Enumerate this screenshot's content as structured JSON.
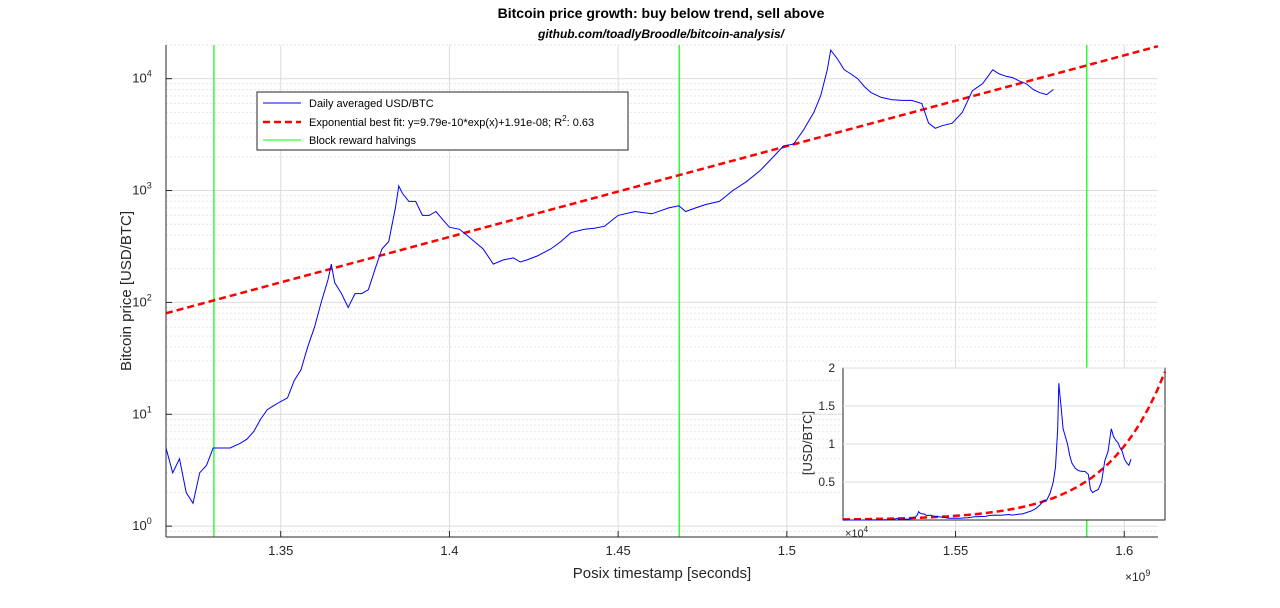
{
  "chart_data": {
    "type": "line",
    "title": "Bitcoin price growth: buy below trend, sell above",
    "subtitle": "github.com/toadlyBroodle/bitcoin-analysis/",
    "xlabel": "Posix timestamp [seconds]",
    "ylabel": "Bitcoin price [USD/BTC]",
    "x_exponent_label": "×10",
    "x_exponent_power": "9",
    "y_scale": "log",
    "xlim": [
      1.316,
      1.61
    ],
    "ylim": [
      0.8,
      20000
    ],
    "grid": true,
    "legend_position": "top-left",
    "x_ticks": [
      1.35,
      1.4,
      1.45,
      1.5,
      1.55,
      1.6
    ],
    "x_tick_labels": [
      "1.35",
      "1.4",
      "1.45",
      "1.5",
      "1.55",
      "1.6"
    ],
    "y_ticks": [
      1,
      10,
      100,
      1000,
      10000
    ],
    "y_tick_bases": [
      "10",
      "10",
      "10",
      "10",
      "10"
    ],
    "y_tick_powers": [
      "0",
      "1",
      "2",
      "3",
      "4"
    ],
    "legend": [
      {
        "label": "Daily averaged USD/BTC",
        "color": "#0000ff",
        "style": "solid"
      },
      {
        "label": "Exponential best fit: y=9.79e-10*exp(x)+1.91e-08; R",
        "sup": "2",
        "suffix": ": 0.63",
        "color": "#ff0000",
        "style": "dashed"
      },
      {
        "label": "Block reward halvings",
        "color": "#00ff00",
        "style": "solid"
      }
    ],
    "halvings": [
      1.3302,
      1.4681,
      1.5889
    ],
    "fit": {
      "start_value": 80,
      "end_value": 19500
    },
    "series": [
      {
        "name": "Daily averaged USD/BTC",
        "x": [
          1.316,
          1.318,
          1.32,
          1.322,
          1.324,
          1.326,
          1.328,
          1.33,
          1.332,
          1.335,
          1.338,
          1.34,
          1.342,
          1.344,
          1.346,
          1.348,
          1.35,
          1.352,
          1.354,
          1.356,
          1.358,
          1.36,
          1.362,
          1.364,
          1.365,
          1.366,
          1.368,
          1.37,
          1.372,
          1.374,
          1.376,
          1.378,
          1.38,
          1.382,
          1.384,
          1.385,
          1.386,
          1.388,
          1.39,
          1.392,
          1.394,
          1.396,
          1.398,
          1.4,
          1.403,
          1.406,
          1.41,
          1.413,
          1.416,
          1.419,
          1.421,
          1.423,
          1.426,
          1.43,
          1.433,
          1.436,
          1.44,
          1.443,
          1.446,
          1.45,
          1.455,
          1.46,
          1.465,
          1.468,
          1.47,
          1.473,
          1.476,
          1.48,
          1.484,
          1.488,
          1.492,
          1.496,
          1.499,
          1.502,
          1.505,
          1.508,
          1.51,
          1.512,
          1.513,
          1.515,
          1.517,
          1.519,
          1.521,
          1.523,
          1.525,
          1.528,
          1.531,
          1.534,
          1.537,
          1.54,
          1.542,
          1.544,
          1.546,
          1.549,
          1.552,
          1.555,
          1.558,
          1.561,
          1.563,
          1.565,
          1.567,
          1.569,
          1.571,
          1.573,
          1.575,
          1.577,
          1.579
        ],
        "y": [
          5,
          3,
          4,
          2,
          1.6,
          3,
          3.5,
          5,
          5,
          5,
          5.5,
          6,
          7,
          9,
          11,
          12,
          13,
          14,
          20,
          25,
          40,
          60,
          100,
          160,
          220,
          150,
          120,
          90,
          120,
          120,
          130,
          200,
          300,
          350,
          700,
          1100,
          950,
          800,
          800,
          600,
          600,
          650,
          550,
          470,
          450,
          380,
          300,
          220,
          240,
          250,
          230,
          240,
          260,
          300,
          350,
          420,
          450,
          460,
          480,
          600,
          650,
          620,
          700,
          730,
          650,
          700,
          750,
          800,
          1000,
          1200,
          1500,
          2000,
          2500,
          2600,
          3500,
          5000,
          7000,
          12000,
          18000,
          15000,
          12000,
          11000,
          10000,
          8500,
          7500,
          6800,
          6500,
          6400,
          6400,
          6000,
          4000,
          3600,
          3800,
          4000,
          5000,
          7800,
          9000,
          12000,
          11000,
          10500,
          10200,
          9500,
          9000,
          8000,
          7500,
          7200,
          8000
        ]
      }
    ],
    "inset": {
      "type": "line",
      "ylabel": "[USD/BTC]",
      "x_exponent_label": "×10",
      "x_exponent_power": "4",
      "xlim": [
        1.316,
        1.61
      ],
      "ylim": [
        0,
        20000
      ],
      "y_ticks": [
        5000,
        10000,
        15000,
        20000
      ],
      "y_tick_labels": [
        "0.5",
        "1",
        "1.5",
        "2"
      ]
    }
  }
}
